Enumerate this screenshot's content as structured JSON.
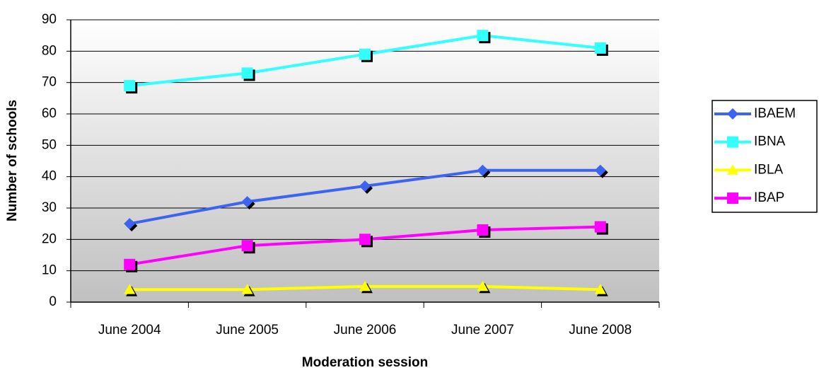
{
  "chart_data": {
    "type": "line",
    "x_label": "Moderation session",
    "y_label": "Number of schools",
    "categories": [
      "June 2004",
      "June 2005",
      "June 2006",
      "June 2007",
      "June 2008"
    ],
    "series": [
      {
        "name": "IBAEM",
        "color": "#3c64f0",
        "marker": "diamond",
        "values": [
          25,
          32,
          37,
          42,
          42
        ]
      },
      {
        "name": "IBNA",
        "color": "#33ffff",
        "marker": "square",
        "values": [
          69,
          73,
          79,
          85,
          81
        ]
      },
      {
        "name": "IBLA",
        "color": "#ffff00",
        "marker": "triangle",
        "values": [
          4,
          4,
          5,
          5,
          4
        ]
      },
      {
        "name": "IBAP",
        "color": "#ff00ff",
        "marker": "square",
        "values": [
          12,
          18,
          20,
          23,
          24
        ]
      }
    ],
    "ylim": [
      0,
      90
    ],
    "yticks": [
      0,
      10,
      20,
      30,
      40,
      50,
      60,
      70,
      80,
      90
    ],
    "grid": true,
    "legend": "right"
  }
}
